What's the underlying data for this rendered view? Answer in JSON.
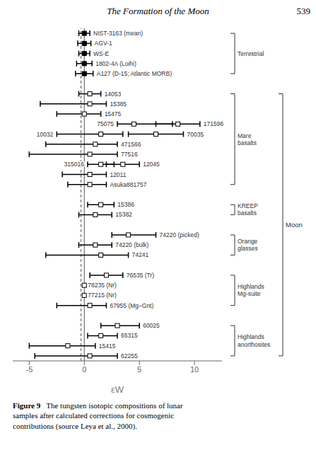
{
  "chart_data": {
    "type": "scatter",
    "title": "The Formation of the Moon",
    "annotations": {
      "page_number": "539",
      "caption_bold": "Figure 9",
      "caption": "   The tungsten isotopic compositions of lunar\nsamples after calculated corrections for cosmogenic\ncontributions (source Leya et al., 2000)."
    },
    "xlabel": "εW",
    "xlim": [
      -6.5,
      12.5
    ],
    "xticks": [
      -5,
      0,
      5,
      10
    ],
    "grid": false,
    "tick_labels": "x",
    "reference_lines": [
      {
        "x": 0.0,
        "line_style": "solid"
      },
      {
        "x": -0.3,
        "line_style": "dashed"
      }
    ],
    "groups": [
      {
        "label": "Terrestrial",
        "marker": "filled_square",
        "rows": [
          [
            {
              "label": "NIST-3163 (mean)",
              "x": 0.0,
              "xerr_lo": 0.5,
              "xerr_hi": 0.5
            }
          ],
          [
            {
              "label": "AGV-1",
              "x": 0.0,
              "xerr_lo": 0.6,
              "xerr_hi": 0.6
            }
          ],
          [
            {
              "label": "WS-E",
              "x": 0.0,
              "xerr_lo": 0.5,
              "xerr_hi": 0.5
            }
          ],
          [
            {
              "label": "1802-4A (Loihi)",
              "x": 0.0,
              "xerr_lo": 0.7,
              "xerr_hi": 0.7
            }
          ],
          [
            {
              "label": "A127 (D-15; Atlantic MORB)",
              "x": 0.0,
              "xerr_lo": 0.8,
              "xerr_hi": 0.8
            }
          ]
        ]
      },
      {
        "label": "Moon",
        "marker": "open_square",
        "groups": [
          {
            "label": "Mare\nbasalts",
            "rows": [
              [
                {
                  "label": "14053",
                  "x": 0.5,
                  "xerr_lo": 1.0,
                  "xerr_hi": 1.0
                }
              ],
              [
                {
                  "label": "15385",
                  "x": 0.5,
                  "xerr_lo": 4.5,
                  "xerr_hi": 1.5
                }
              ],
              [
                {
                  "label": "15475",
                  "x": 0.0,
                  "xerr_lo": 2.5,
                  "xerr_hi": 1.5
                }
              ],
              [
                {
                  "label": "75075",
                  "x": 4.5,
                  "xerr_lo": 1.5,
                  "xerr_hi": 3.5
                },
                {
                  "label": "171596",
                  "x": 8.5,
                  "xerr_lo": 2.0,
                  "xerr_hi": 2.0
                }
              ],
              [
                {
                  "label": "10032",
                  "x": 1.5,
                  "xerr_lo": 4.0,
                  "xerr_hi": 2.0
                },
                {
                  "label": "70035",
                  "x": 6.5,
                  "xerr_lo": 2.5,
                  "xerr_hi": 2.5
                }
              ],
              [
                {
                  "label": "471566",
                  "x": 1.0,
                  "xerr_lo": 4.5,
                  "xerr_hi": 2.0
                }
              ],
              [
                {
                  "label": "77516",
                  "x": 0.5,
                  "xerr_lo": 5.5,
                  "xerr_hi": 2.5
                }
              ],
              [
                {
                  "label": "315016",
                  "x": 1.5,
                  "xerr_lo": 1.2,
                  "xerr_hi": 1.2
                },
                {
                  "label": "12045",
                  "x": 3.5,
                  "xerr_lo": 1.5,
                  "xerr_hi": 1.5
                }
              ],
              [
                {
                  "label": "12011",
                  "x": 0.5,
                  "xerr_lo": 2.5,
                  "xerr_hi": 1.5
                }
              ],
              [
                {
                  "label": "Asuka881757",
                  "x": 0.5,
                  "xerr_lo": 2.0,
                  "xerr_hi": 1.5
                }
              ]
            ]
          },
          {
            "label": "KREEP\nbasalts",
            "rows": [
              [
                {
                  "label": "15386",
                  "x": 1.5,
                  "xerr_lo": 1.2,
                  "xerr_hi": 1.2
                }
              ],
              [
                {
                  "label": "15382",
                  "x": 1.0,
                  "xerr_lo": 1.5,
                  "xerr_hi": 1.5
                }
              ]
            ]
          },
          {
            "label": "Orange\nglasses",
            "rows": [
              [
                {
                  "label": "74220 (picked)",
                  "x": 4.0,
                  "xerr_lo": 1.5,
                  "xerr_hi": 2.5
                }
              ],
              [
                {
                  "label": "74220 (bulk)",
                  "x": 1.0,
                  "xerr_lo": 1.5,
                  "xerr_hi": 1.5
                }
              ],
              [
                {
                  "label": "74241",
                  "x": 1.5,
                  "xerr_lo": 5.0,
                  "xerr_hi": 2.5
                }
              ]
            ]
          },
          {
            "label": "Highlands\nMg-suite",
            "rows": [
              [
                {
                  "label": "76535 (Tr)",
                  "x": 2.0,
                  "xerr_lo": 1.5,
                  "xerr_hi": 1.5
                }
              ],
              [
                {
                  "label": "78235 (Nr)",
                  "x": 0.0,
                  "xerr_lo": 0.0,
                  "xerr_hi": 0.0
                }
              ],
              [
                {
                  "label": "77215 (Nr)",
                  "x": 0.0,
                  "xerr_lo": 0.0,
                  "xerr_hi": 0.0
                }
              ],
              [
                {
                  "label": "67955 (Mg–Gnt)",
                  "x": 0.5,
                  "xerr_lo": 3.0,
                  "xerr_hi": 1.5
                }
              ]
            ]
          },
          {
            "label": "Highlands\nanorthosites",
            "rows": [
              [
                {
                  "label": "60025",
                  "x": 3.0,
                  "xerr_lo": 1.5,
                  "xerr_hi": 2.0
                }
              ],
              [
                {
                  "label": "65315",
                  "x": 1.5,
                  "xerr_lo": 1.2,
                  "xerr_hi": 1.5
                }
              ],
              [
                {
                  "label": "15415",
                  "x": -1.5,
                  "xerr_lo": 3.5,
                  "xerr_hi": 2.5
                }
              ],
              [
                {
                  "label": "62255",
                  "x": 0.5,
                  "xerr_lo": 5.0,
                  "xerr_hi": 2.5
                }
              ]
            ]
          }
        ]
      }
    ]
  }
}
